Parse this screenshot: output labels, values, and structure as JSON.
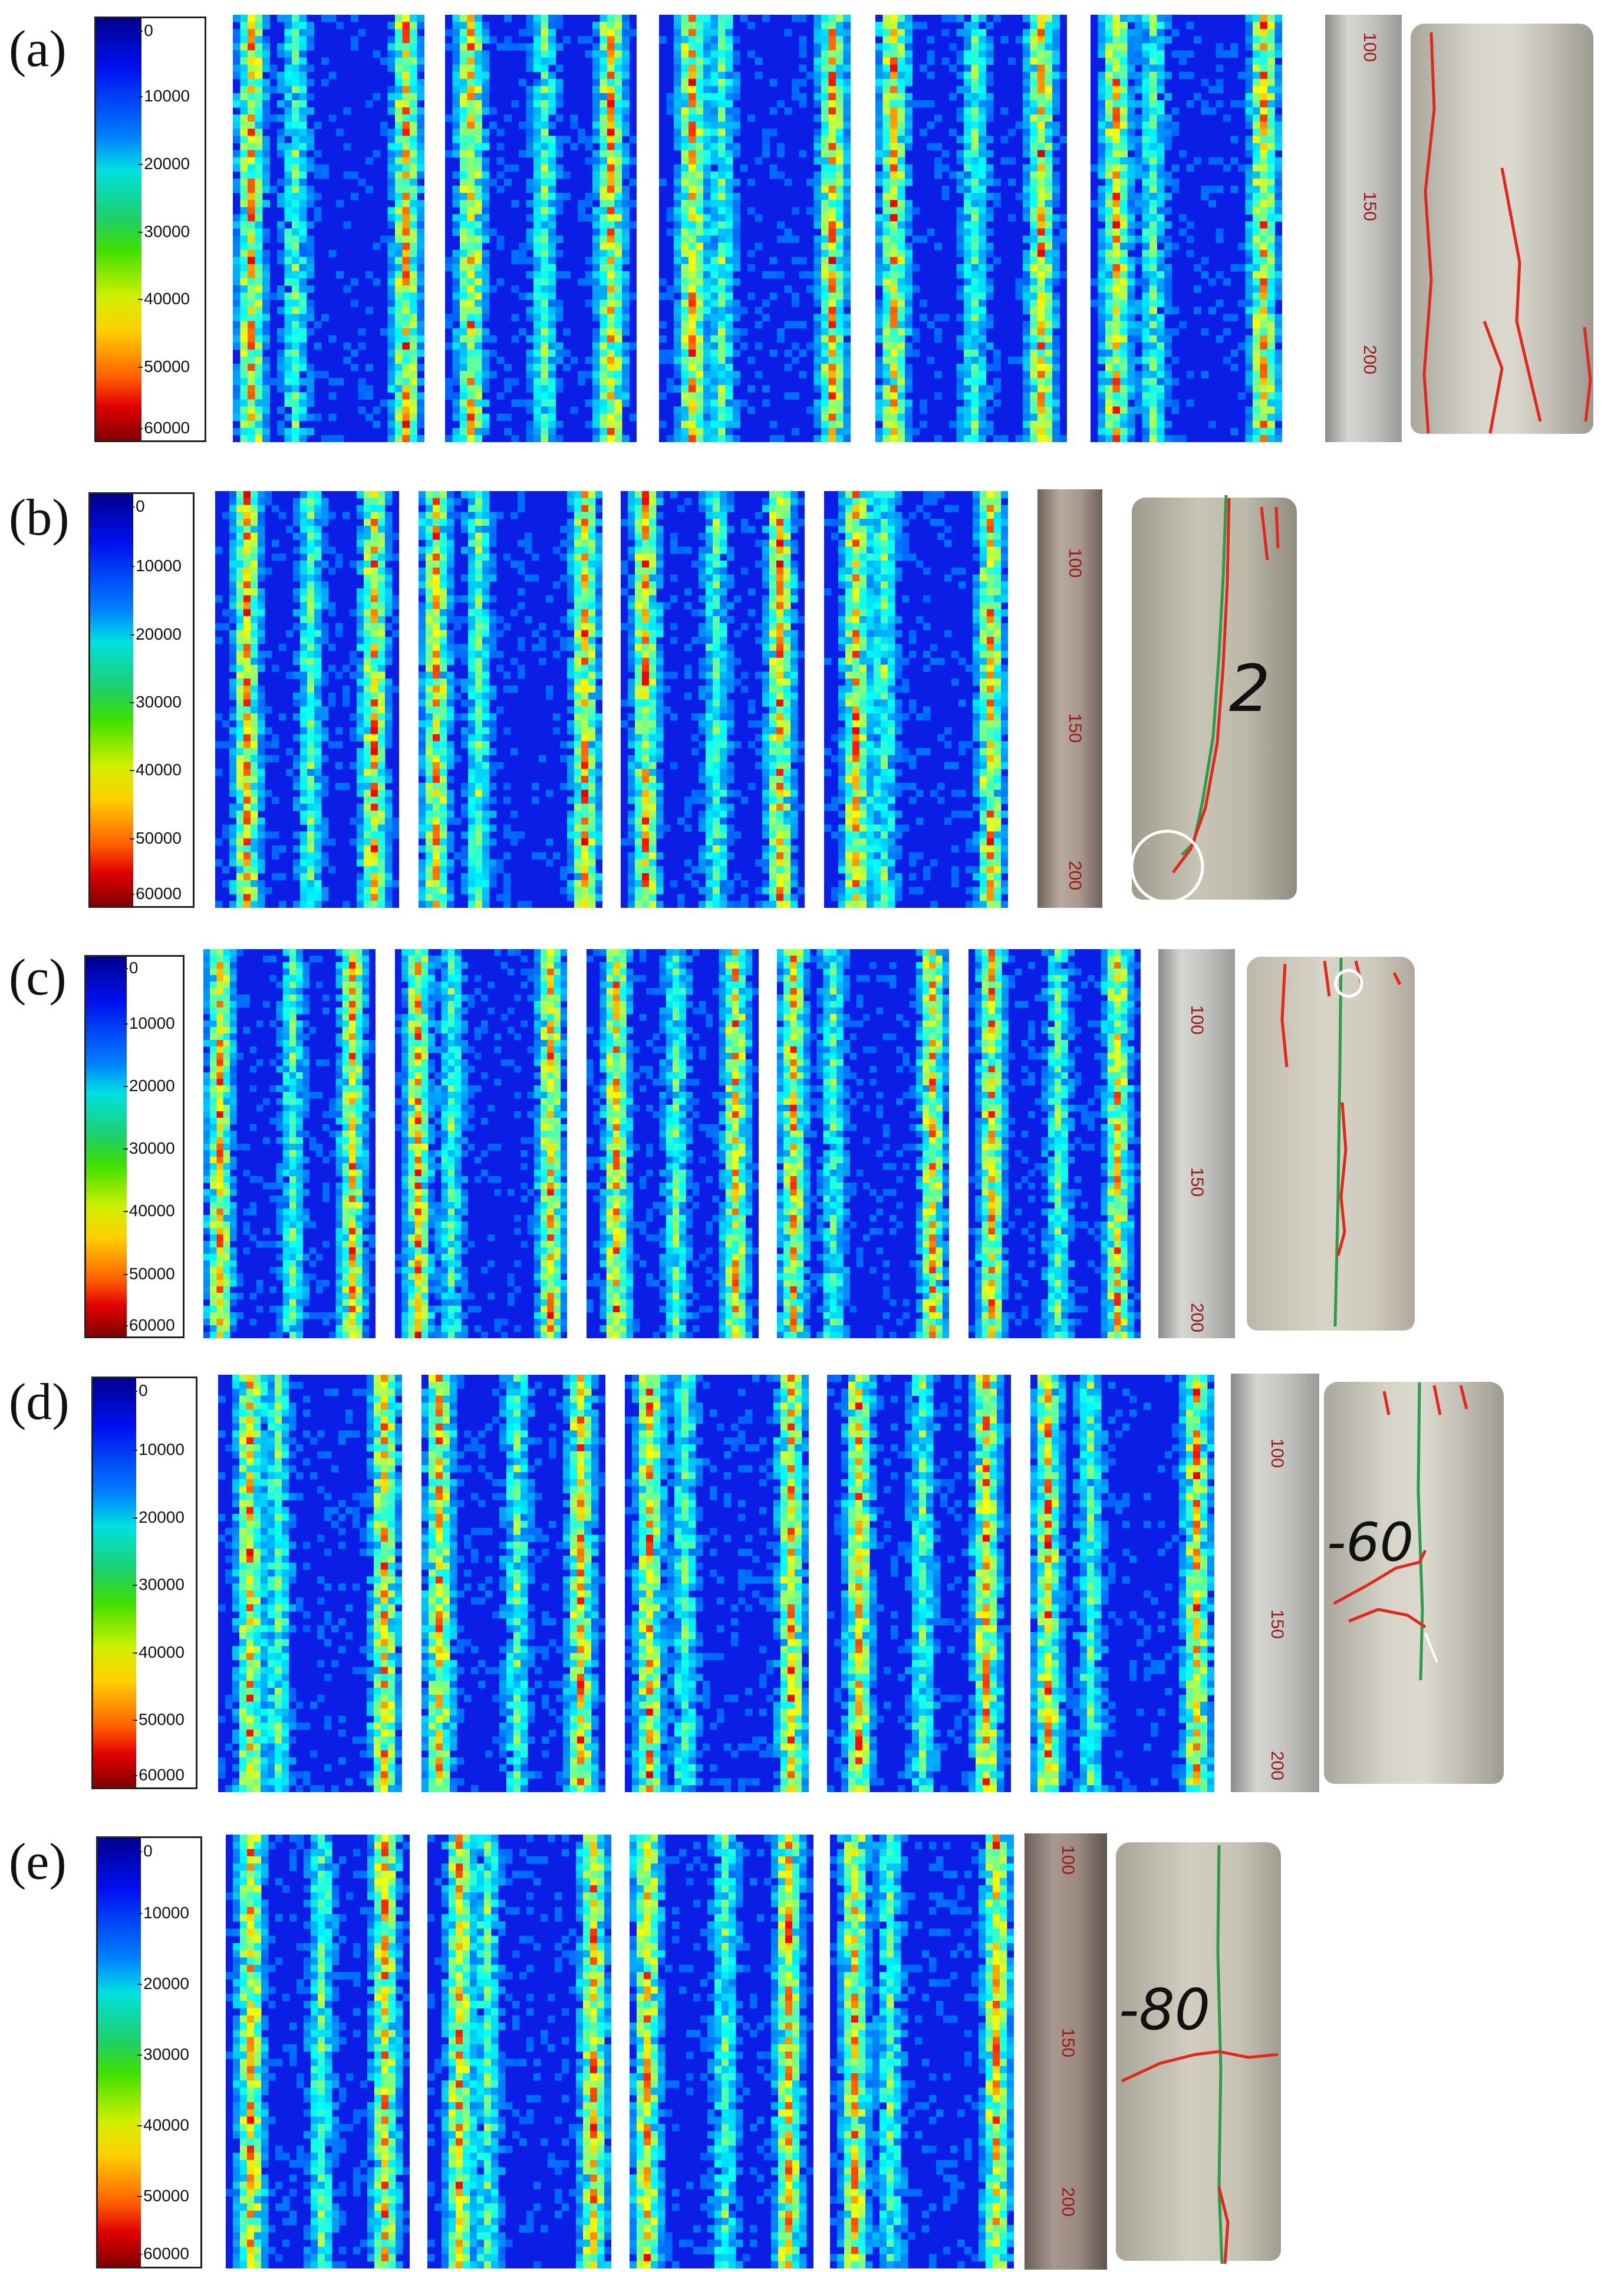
{
  "rows": [
    {
      "label": "(a)",
      "colorbar_ticks": [
        "0",
        "10000",
        "20000",
        "30000",
        "40000",
        "50000",
        "60000"
      ],
      "specimen_mark": "",
      "ruler_numbers": [
        "100",
        "150",
        "200"
      ]
    },
    {
      "label": "(b)",
      "colorbar_ticks": [
        "0",
        "10000",
        "20000",
        "30000",
        "40000",
        "50000",
        "60000"
      ],
      "specimen_mark": "2",
      "ruler_numbers": [
        "100",
        "150",
        "200"
      ]
    },
    {
      "label": "(c)",
      "colorbar_ticks": [
        "0",
        "10000",
        "20000",
        "30000",
        "40000",
        "50000",
        "60000"
      ],
      "specimen_mark": "",
      "ruler_numbers": [
        "100",
        "150",
        "200"
      ]
    },
    {
      "label": "(d)",
      "colorbar_ticks": [
        "0",
        "10000",
        "20000",
        "30000",
        "40000",
        "50000",
        "60000"
      ],
      "specimen_mark": "-60",
      "ruler_numbers": [
        "100",
        "150",
        "200"
      ]
    },
    {
      "label": "(e)",
      "colorbar_ticks": [
        "0",
        "10000",
        "20000",
        "30000",
        "40000",
        "50000",
        "60000"
      ],
      "specimen_mark": "-80",
      "ruler_numbers": [
        "100",
        "150",
        "200"
      ]
    }
  ],
  "colors": {
    "low": "#00008f",
    "mid": "#40e000",
    "high": "#800000"
  }
}
